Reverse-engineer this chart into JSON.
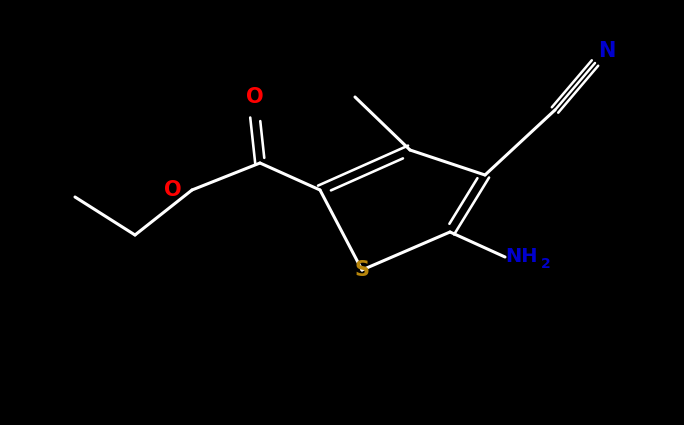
{
  "bg_color": "#000000",
  "bond_color": "#ffffff",
  "bond_width": 2.2,
  "O_color": "#ff0000",
  "S_color": "#b8860b",
  "N_color": "#0000cd",
  "figsize": [
    6.84,
    4.25
  ],
  "dpi": 100,
  "xlim": [
    0,
    6.84
  ],
  "ylim": [
    0,
    4.25
  ]
}
